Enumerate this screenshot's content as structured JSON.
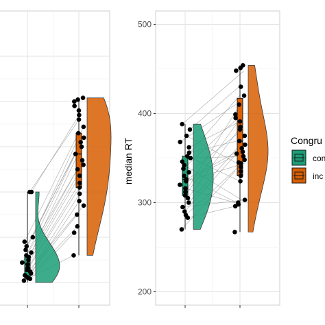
{
  "chart_data": [
    {
      "type": "raincloud",
      "panel": "left",
      "title": "",
      "xlabel": "",
      "ylabel": "",
      "categories": [
        "congruent",
        "incongruent"
      ],
      "grid": true,
      "colors": {
        "congruent": "#1b9e77",
        "incongruent": "#d95f02"
      },
      "series": [
        {
          "name": "congruent",
          "box": {
            "min": 0,
            "q1": 0.05,
            "median": 0.12,
            "q3": 0.3,
            "max": 1.0
          },
          "points": [
            0.02,
            0.04,
            0.05,
            0.06,
            0.08,
            0.1,
            0.12,
            0.14,
            0.16,
            0.2,
            0.22,
            0.25,
            0.28,
            0.3,
            0.33,
            0.36,
            0.4,
            0.45,
            0.5,
            1.0,
            1.0
          ]
        },
        {
          "name": "incongruent",
          "box": {
            "min": 0.3,
            "q1": 1.05,
            "median": 1.42,
            "q3": 1.65,
            "max": 2.04
          },
          "points": [
            0.3,
            0.55,
            0.62,
            0.75,
            0.85,
            0.9,
            0.98,
            1.05,
            1.1,
            1.18,
            1.25,
            1.3,
            1.35,
            1.42,
            1.5,
            1.55,
            1.6,
            1.65,
            1.72,
            1.8,
            1.85,
            1.9,
            1.95,
            2.0,
            2.02,
            2.04
          ]
        }
      ]
    },
    {
      "type": "raincloud",
      "panel": "right",
      "title": "",
      "xlabel": "",
      "ylabel": "median RT",
      "ylim": [
        185,
        515
      ],
      "yticks": [
        200,
        300,
        400,
        500
      ],
      "categories": [
        "congruent",
        "incongruent"
      ],
      "grid": true,
      "legend": {
        "title": "Congru",
        "position": "right",
        "labels": [
          "con",
          "inc"
        ]
      },
      "colors": {
        "congruent": "#1b9e77",
        "incongruent": "#d95f02"
      },
      "series": [
        {
          "name": "congruent",
          "box": {
            "min": 270,
            "q1": 308,
            "median": 326,
            "q3": 352,
            "max": 388
          },
          "points": [
            270,
            283,
            286,
            290,
            295,
            300,
            305,
            308,
            312,
            316,
            320,
            324,
            326,
            330,
            334,
            338,
            342,
            346,
            350,
            352,
            356,
            362,
            368,
            375,
            382,
            388
          ],
          "paired": [
            335,
            296,
            340,
            357,
            303,
            365,
            385,
            395,
            411,
            298,
            355,
            344,
            361,
            300,
            382,
            399,
            301,
            420,
            352,
            324,
            370,
            391,
            410,
            345,
            430,
            448
          ]
        },
        {
          "name": "incongruent",
          "box": {
            "min": 267,
            "q1": 330,
            "median": 369,
            "q3": 417,
            "max": 454
          },
          "points": [
            267,
            296,
            298,
            300,
            303,
            324,
            330,
            335,
            340,
            344,
            345,
            348,
            352,
            355,
            357,
            361,
            365,
            369,
            375,
            382,
            385,
            391,
            395,
            399,
            410,
            420,
            430,
            448,
            451,
            454
          ]
        }
      ]
    }
  ],
  "icons": {
    "legend_key_congruent": "boxplot-key-green",
    "legend_key_incongruent": "boxplot-key-orange"
  }
}
